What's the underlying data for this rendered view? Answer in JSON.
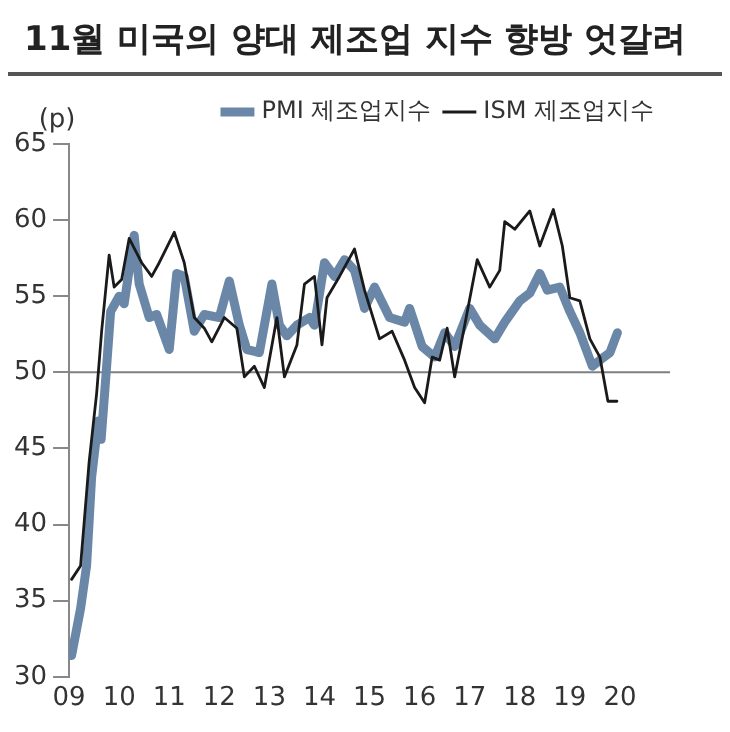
{
  "chart_data": {
    "type": "line",
    "title": "11월 미국의 양대 제조업 지수 향방 엇갈려",
    "ylabel": "(p)",
    "xlim": [
      2009,
      2021
    ],
    "xticks": [
      {
        "value": 2009,
        "label": "09"
      },
      {
        "value": 2010,
        "label": "10"
      },
      {
        "value": 2011,
        "label": "11"
      },
      {
        "value": 2012,
        "label": "12"
      },
      {
        "value": 2013,
        "label": "13"
      },
      {
        "value": 2014,
        "label": "14"
      },
      {
        "value": 2015,
        "label": "15"
      },
      {
        "value": 2016,
        "label": "16"
      },
      {
        "value": 2017,
        "label": "17"
      },
      {
        "value": 2018,
        "label": "18"
      },
      {
        "value": 2019,
        "label": "19"
      },
      {
        "value": 2020,
        "label": "20"
      }
    ],
    "ylim": [
      30,
      65
    ],
    "yticks": [
      30,
      35,
      40,
      45,
      50,
      55,
      60,
      65
    ],
    "grid": false,
    "legend": "top",
    "marker": "none",
    "line_style": "solid",
    "ref_lines": [
      {
        "axis": "y",
        "value": 50,
        "color": "#7f7f7f"
      }
    ],
    "series": [
      {
        "name": "PMI 제조업지수",
        "color": "#6a87a8",
        "x": [
          2009.05,
          2009.23,
          2009.35,
          2009.45,
          2009.58,
          2009.64,
          2009.73,
          2009.83,
          2010.0,
          2010.1,
          2010.3,
          2010.4,
          2010.6,
          2010.75,
          2011.0,
          2011.15,
          2011.3,
          2011.5,
          2011.7,
          2012.0,
          2012.2,
          2012.4,
          2012.55,
          2012.8,
          2013.05,
          2013.2,
          2013.35,
          2013.55,
          2013.8,
          2013.9,
          2014.1,
          2014.3,
          2014.5,
          2014.7,
          2014.9,
          2015.1,
          2015.4,
          2015.7,
          2015.8,
          2016.05,
          2016.3,
          2016.5,
          2016.7,
          2017.0,
          2017.2,
          2017.5,
          2017.7,
          2018.0,
          2018.2,
          2018.4,
          2018.55,
          2018.8,
          2019.0,
          2019.2,
          2019.45,
          2019.6,
          2019.8,
          2019.95
        ],
        "values": [
          31.4,
          34.5,
          37.3,
          43.1,
          46.8,
          45.6,
          49.5,
          54.0,
          55.0,
          54.5,
          59.0,
          55.8,
          53.6,
          53.8,
          51.5,
          56.5,
          56.3,
          52.7,
          53.8,
          53.6,
          56.0,
          53.1,
          51.5,
          51.3,
          55.8,
          53.1,
          52.4,
          53.1,
          53.6,
          53.1,
          57.2,
          56.3,
          57.4,
          56.7,
          54.2,
          55.6,
          53.6,
          53.3,
          54.2,
          51.7,
          51.0,
          52.6,
          51.7,
          54.2,
          53.1,
          52.2,
          53.3,
          54.7,
          55.2,
          56.5,
          55.4,
          55.6,
          54.0,
          52.6,
          50.4,
          50.8,
          51.3,
          52.6
        ]
      },
      {
        "name": "ISM 제조업지수",
        "color": "#1a1a1a",
        "x": [
          2009.05,
          2009.23,
          2009.4,
          2009.55,
          2009.65,
          2009.8,
          2009.9,
          2010.05,
          2010.2,
          2010.45,
          2010.65,
          2010.8,
          2011.1,
          2011.3,
          2011.5,
          2011.7,
          2011.85,
          2012.1,
          2012.35,
          2012.5,
          2012.7,
          2012.9,
          2013.15,
          2013.3,
          2013.55,
          2013.7,
          2013.9,
          2014.05,
          2014.15,
          2014.4,
          2014.7,
          2014.9,
          2015.2,
          2015.45,
          2015.7,
          2015.9,
          2016.1,
          2016.25,
          2016.4,
          2016.55,
          2016.7,
          2016.9,
          2017.15,
          2017.4,
          2017.6,
          2017.7,
          2017.9,
          2018.2,
          2018.4,
          2018.67,
          2018.85,
          2019.0,
          2019.2,
          2019.4,
          2019.6,
          2019.76,
          2019.94
        ],
        "values": [
          36.4,
          37.3,
          44.1,
          48.6,
          52.7,
          57.7,
          55.6,
          56.1,
          58.8,
          57.2,
          56.3,
          57.2,
          59.2,
          57.2,
          53.6,
          52.9,
          52.0,
          53.6,
          52.9,
          49.7,
          50.4,
          49.0,
          53.6,
          49.7,
          51.8,
          55.8,
          56.3,
          51.8,
          54.9,
          56.3,
          58.1,
          55.4,
          52.2,
          52.7,
          50.8,
          49.0,
          48.0,
          51.0,
          50.8,
          52.9,
          49.7,
          53.1,
          57.4,
          55.6,
          56.7,
          59.9,
          59.4,
          60.6,
          58.3,
          60.7,
          58.3,
          54.9,
          54.7,
          52.2,
          51.0,
          48.1,
          48.1
        ]
      }
    ]
  }
}
